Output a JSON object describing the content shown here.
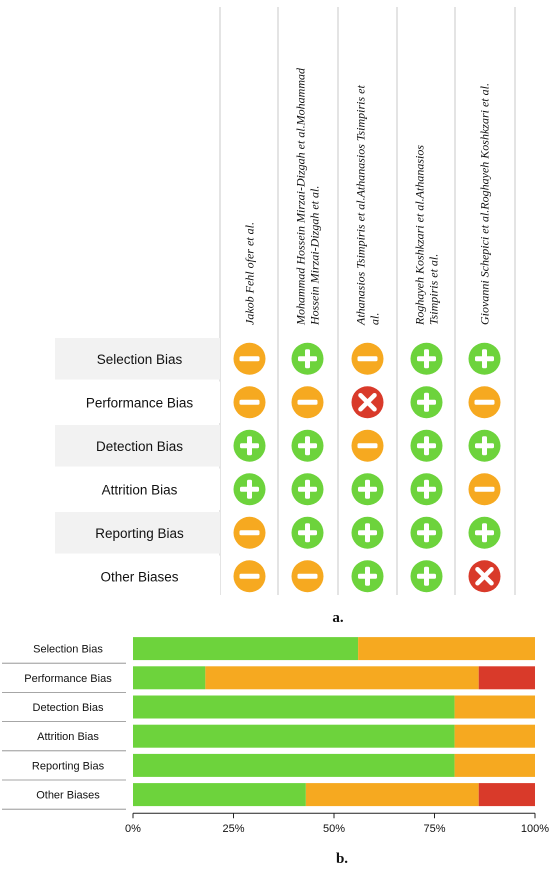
{
  "colors": {
    "low": "#6dd33c",
    "unclear": "#f6a920",
    "high": "#d93a2a",
    "row_band": "#f2f2f2",
    "grid": "#c8c8c8"
  },
  "icons": {
    "low": "plus-icon",
    "unclear": "minus-icon",
    "high": "cross-icon"
  },
  "chart_data": [
    {
      "type": "table",
      "panel_label": "a.",
      "studies": [
        "Jakob Fehl ofer et al.",
        "Mohammad Hossein Mirzai-Dizgah et al.Mohammad Hossein Mirzai-Dizgah et al.",
        "Athanasios Tsimpiris et al.Athanasios Tsimpiris et al.",
        "Roghayeh Koshkzari et al.Athanasios Tsimpiris et al.",
        "Giovanni Schepici et al.Roghayeh Koshkzari et al."
      ],
      "studies_display": [
        [
          "Jakob Fehl ofer et al."
        ],
        [
          "Mohammad Hossein Mirzai-Dizgah et al.Mohammad",
          "Hossein Mirzai-Dizgah et al."
        ],
        [
          "Athanasios Tsimpiris et al.Athanasios Tsimpiris et",
          "al."
        ],
        [
          "Roghayeh Koshkzari et al.Athanasios",
          "Tsimpiris et al."
        ],
        [
          "Giovanni Schepici et al.Roghayeh Koshkzari et al."
        ]
      ],
      "domains": [
        "Selection Bias",
        "Performance Bias",
        "Detection Bias",
        "Attrition Bias",
        "Reporting Bias",
        "Other Biases"
      ],
      "judgements": [
        [
          "unclear",
          "low",
          "unclear",
          "low",
          "low"
        ],
        [
          "unclear",
          "unclear",
          "high",
          "low",
          "unclear"
        ],
        [
          "low",
          "low",
          "unclear",
          "low",
          "low"
        ],
        [
          "low",
          "low",
          "low",
          "low",
          "unclear"
        ],
        [
          "unclear",
          "low",
          "low",
          "low",
          "low"
        ],
        [
          "unclear",
          "unclear",
          "low",
          "low",
          "high"
        ]
      ]
    },
    {
      "type": "bar",
      "stacked": true,
      "orientation": "horizontal",
      "panel_label": "b.",
      "categories": [
        "Selection Bias",
        "Performance Bias",
        "Detection Bias",
        "Attrition Bias",
        "Reporting Bias",
        "Other Biases"
      ],
      "series": [
        {
          "key": "low",
          "values": [
            56,
            18,
            80,
            80,
            80,
            43
          ]
        },
        {
          "key": "unclear",
          "values": [
            44,
            68,
            20,
            20,
            20,
            43
          ]
        },
        {
          "key": "high",
          "values": [
            0,
            14,
            0,
            0,
            0,
            14
          ]
        }
      ],
      "xlim": [
        0,
        100
      ],
      "xticks": [
        "0%",
        "25%",
        "50%",
        "75%",
        "100%"
      ],
      "xtick_values": [
        0,
        25,
        50,
        75,
        100
      ],
      "grid": false
    }
  ]
}
